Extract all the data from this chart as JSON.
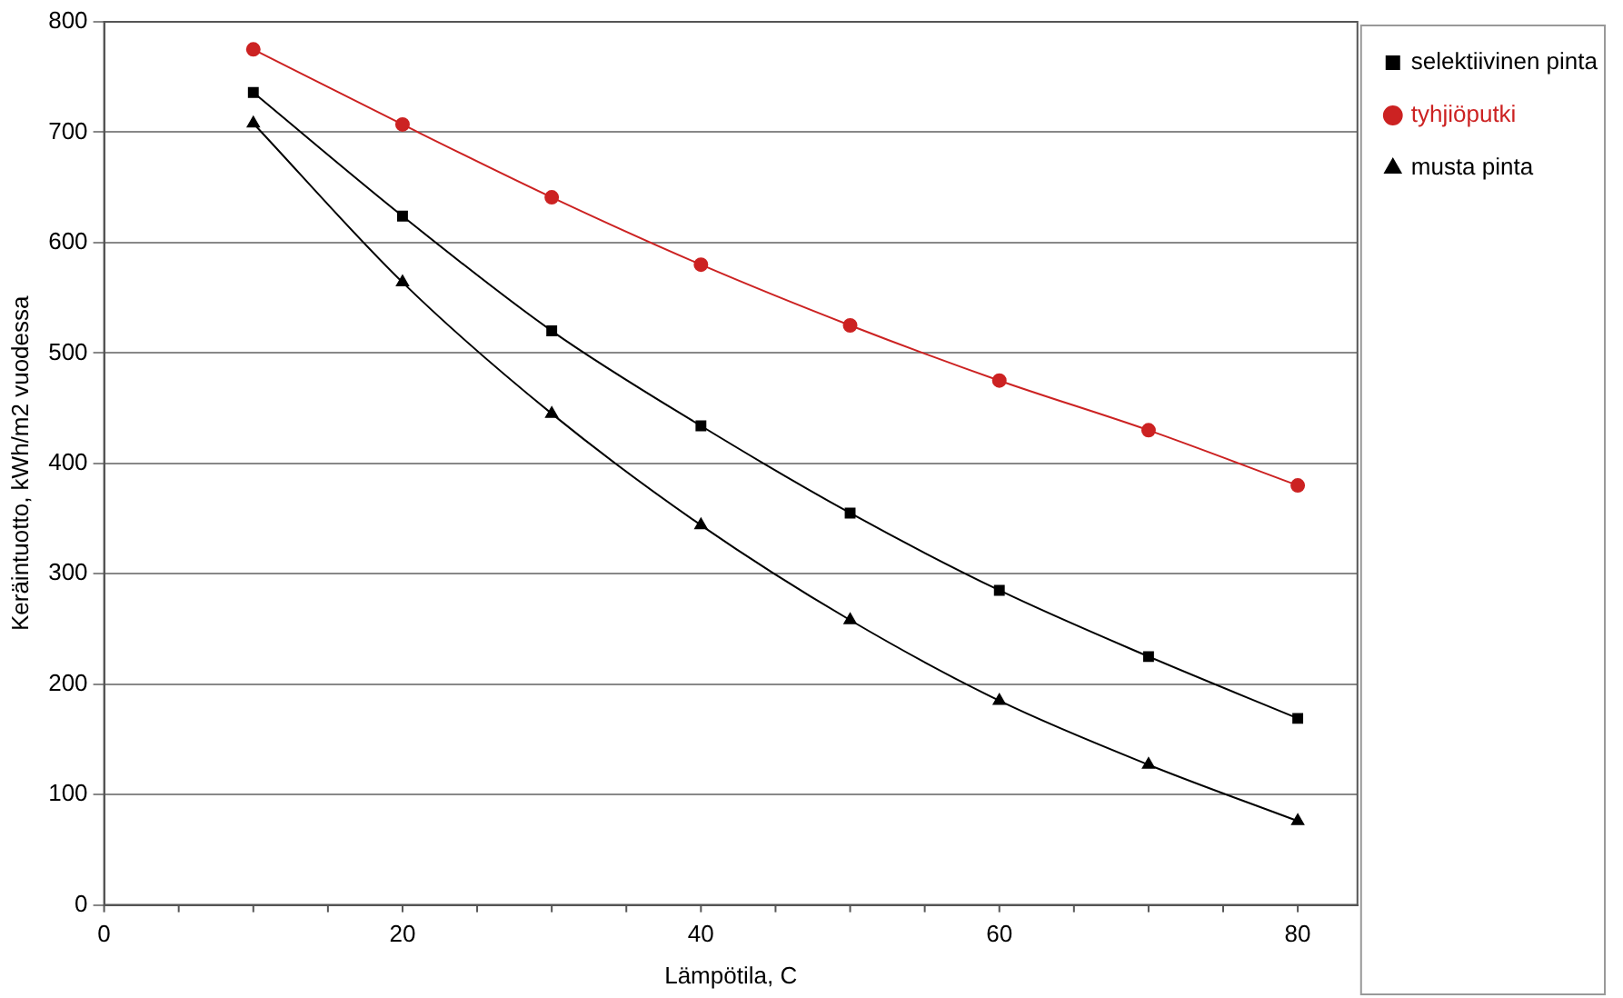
{
  "chart_data": {
    "type": "line",
    "xlabel": "Lämpötila, C",
    "ylabel": "Keräintuotto, kWh/m2 vuodessa",
    "x": [
      10,
      20,
      30,
      40,
      50,
      60,
      70,
      80
    ],
    "series": [
      {
        "name": "selektiivinen pinta",
        "color": "#000000",
        "marker": "square",
        "values": [
          736,
          624,
          520,
          434,
          355,
          285,
          225,
          169
        ]
      },
      {
        "name": "tyhjiöputki",
        "color": "#cc2222",
        "marker": "circle",
        "values": [
          775,
          707,
          641,
          580,
          525,
          475,
          430,
          380
        ]
      },
      {
        "name": "musta pinta",
        "color": "#000000",
        "marker": "triangle",
        "values": [
          708,
          564,
          445,
          344,
          258,
          185,
          127,
          76
        ]
      }
    ],
    "xlim": [
      0,
      84
    ],
    "xticks": [
      0,
      20,
      40,
      60,
      80
    ],
    "ylim": [
      0,
      800
    ],
    "yticks": [
      0,
      100,
      200,
      300,
      400,
      500,
      600,
      700,
      800
    ],
    "grid": "y",
    "legend": "right",
    "line_style": "solid"
  }
}
